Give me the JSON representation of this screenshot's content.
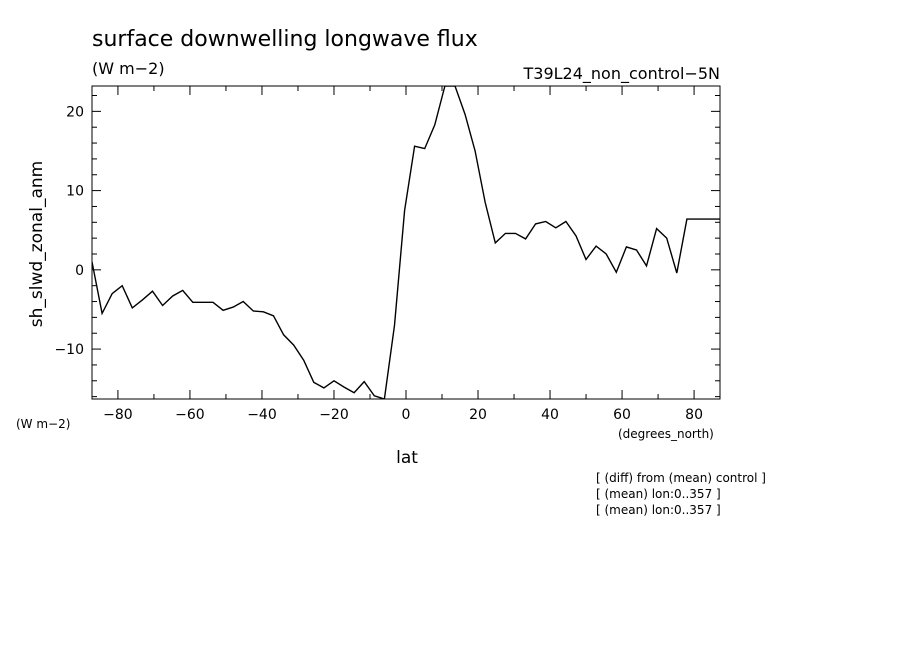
{
  "chart_data": {
    "type": "line",
    "title": "surface downwelling longwave flux",
    "units": "(W m−2)",
    "dataset": "T39L24_non_control−5N",
    "xlabel": "lat",
    "ylabel": "sh_slwd_zonal_anm",
    "x_units": "(degrees_north)",
    "y_units": "(W m−2)",
    "notes": [
      "[ (diff) from (mean) control ]",
      "[ (mean) lon:0..357 ]",
      "[ (mean) lon:0..357 ]"
    ],
    "xlim": [
      -87.2,
      87.2
    ],
    "ylim": [
      -16.3,
      23.2
    ],
    "x_ticks": [
      -80,
      -60,
      -40,
      -20,
      0,
      20,
      40,
      60,
      80
    ],
    "x_tick_labels": [
      "−80",
      "−60",
      "−40",
      "−20",
      "0",
      "20",
      "40",
      "60",
      "80"
    ],
    "y_ticks": [
      -10,
      0,
      10,
      20
    ],
    "y_tick_labels": [
      "−10",
      "0",
      "10",
      "20"
    ],
    "grid": false,
    "series": [
      {
        "color": "#000000",
        "x": [
          -87.2,
          -84.4,
          -81.6,
          -78.8,
          -76.0,
          -73.2,
          -70.4,
          -67.6,
          -64.8,
          -62.0,
          -59.2,
          -56.4,
          -53.6,
          -50.8,
          -48.0,
          -45.2,
          -42.4,
          -39.6,
          -36.8,
          -34.0,
          -31.2,
          -28.4,
          -25.6,
          -22.8,
          -20.0,
          -17.2,
          -14.4,
          -11.6,
          -8.8,
          -6.0,
          -3.2,
          -0.4,
          2.4,
          5.2,
          8.0,
          10.8,
          13.6,
          16.4,
          19.2,
          22.0,
          24.8,
          27.6,
          30.4,
          33.2,
          36.0,
          38.8,
          41.6,
          44.4,
          47.2,
          50.0,
          52.8,
          55.6,
          58.4,
          61.2,
          64.0,
          66.8,
          69.6,
          72.4,
          75.2,
          78.0,
          80.8,
          83.6,
          86.4,
          87.2
        ],
        "y": [
          1.0,
          -5.5,
          -3.0,
          -2.0,
          -4.8,
          -3.8,
          -2.7,
          -4.5,
          -3.3,
          -2.6,
          -4.1,
          -4.1,
          -4.1,
          -5.1,
          -4.7,
          -4.0,
          -5.2,
          -5.3,
          -5.8,
          -8.2,
          -9.5,
          -11.4,
          -14.2,
          -14.9,
          -14.0,
          -14.8,
          -15.5,
          -14.1,
          -15.9,
          -16.3,
          -7.0,
          7.5,
          15.6,
          15.3,
          18.3,
          23.2,
          23.2,
          19.6,
          15.0,
          8.5,
          3.4,
          4.6,
          4.6,
          3.9,
          5.8,
          6.1,
          5.3,
          6.1,
          4.3,
          1.3,
          3.0,
          2.0,
          -0.3,
          2.9,
          2.5,
          0.5,
          5.2,
          4.0,
          -0.4,
          6.4,
          6.4,
          6.4,
          6.4,
          6.4
        ]
      }
    ]
  }
}
